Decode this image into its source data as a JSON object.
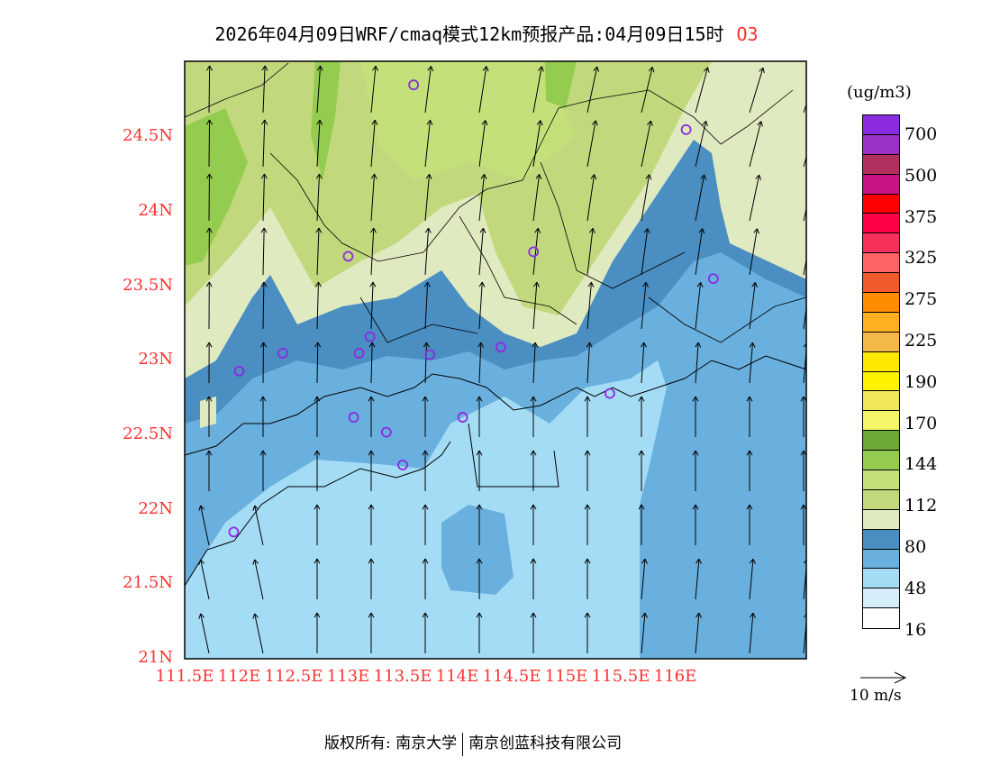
{
  "title": {
    "main": "2026年04月09日WRF/cmaq模式12km预报产品:04月09日15时",
    "species": "O3"
  },
  "axes": {
    "x_ticks": [
      "111.5E",
      "112E",
      "112.5E",
      "113E",
      "113.5E",
      "114E",
      "114.5E",
      "115E",
      "115.5E",
      "116E"
    ],
    "x_values": [
      111.5,
      112,
      112.5,
      113,
      113.5,
      114,
      114.5,
      115,
      115.5,
      116
    ],
    "y_ticks": [
      "24.5N",
      "24N",
      "23.5N",
      "23N",
      "22.5N",
      "22N",
      "21.5N",
      "21N"
    ],
    "y_values": [
      24.5,
      24,
      23.5,
      23,
      22.5,
      22,
      21.5,
      21
    ],
    "lon_range": [
      111.5,
      117.2
    ],
    "lat_range": [
      21,
      25
    ]
  },
  "colorbar": {
    "units": "(ug/m3)",
    "labels": [
      "700",
      "500",
      "375",
      "325",
      "275",
      "225",
      "190",
      "170",
      "144",
      "112",
      "80",
      "48",
      "16"
    ],
    "colors": [
      "#8a2be2",
      "#9b32c8",
      "#b03060",
      "#c71585",
      "#ff0000",
      "#ff0046",
      "#f5305a",
      "#ff6464",
      "#f05a2d",
      "#ff8c00",
      "#ffb020",
      "#f5b84a",
      "#ffe800",
      "#fff200",
      "#f2e55a",
      "#f5f56a",
      "#6aa837",
      "#94cc50",
      "#c3e07a",
      "#c2d87c",
      "#e0eac0",
      "#4a8ec2",
      "#6ab0de",
      "#a4dcf5",
      "#d6eefa",
      "#ffffff"
    ]
  },
  "wind_reference": "10 m/s",
  "stations": [
    [
      113.6,
      24.85
    ],
    [
      116.1,
      24.55
    ],
    [
      113.0,
      23.7
    ],
    [
      114.7,
      23.73
    ],
    [
      116.35,
      23.55
    ],
    [
      112.4,
      23.05
    ],
    [
      113.1,
      23.05
    ],
    [
      113.2,
      23.16
    ],
    [
      113.75,
      23.04
    ],
    [
      114.4,
      23.09
    ],
    [
      112.0,
      22.93
    ],
    [
      115.4,
      22.78
    ],
    [
      113.05,
      22.62
    ],
    [
      114.05,
      22.62
    ],
    [
      113.35,
      22.52
    ],
    [
      113.5,
      22.3
    ],
    [
      111.95,
      21.85
    ]
  ],
  "station_color": "#8a2be2",
  "footer": {
    "left": "版权所有: 南京大学",
    "right": "南京创蓝科技有限公司"
  }
}
